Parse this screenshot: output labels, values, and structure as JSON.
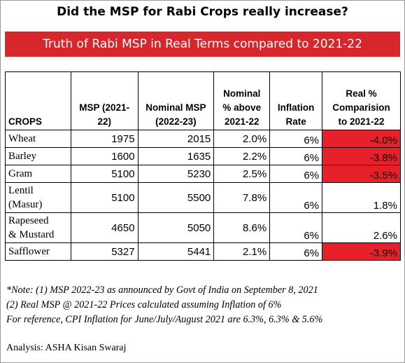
{
  "header": {
    "title": "Did the MSP for Rabi Crops really increase?",
    "banner": "Truth of Rabi MSP in Real Terms compared to 2021-22"
  },
  "table": {
    "columns": [
      "CROPS",
      "MSP (2021-\n22)",
      "Nominal MSP\n(2022-23)",
      "Nominal\n% above\n2021-22",
      "Inflation\nRate",
      "Real %\nComparision\nto 2021-22"
    ],
    "rows": [
      [
        "Wheat",
        "1975",
        "2015",
        "2.0%",
        "6%",
        "-4.0%"
      ],
      [
        "Barley",
        "1600",
        "1635",
        "2.2%",
        "6%",
        "-3.8%"
      ],
      [
        "Gram",
        "5100",
        "5230",
        "2.5%",
        "6%",
        "-3.5%"
      ],
      [
        "Lentil\n(Masur)",
        "5100",
        "5500",
        "7.8%",
        "6%",
        "1.8%"
      ],
      [
        "Rapeseed\n& Mustard",
        "4650",
        "5050",
        "8.6%",
        "6%",
        "2.6%"
      ],
      [
        "Safflower",
        "5327",
        "5441",
        "2.1%",
        "6%",
        "-3.9%"
      ]
    ],
    "negative_fill": "#e8202a"
  },
  "notes": [
    "*Note: (1) MSP 2022-23 as announced by Govt of India on September 8, 2021",
    "(2) Real MSP @ 2021-22 Prices calculated assuming Inflation of 6%",
    "For reference, CPI Inflation for June/July/August 2021 are 6.3%, 6.3% & 5.6%"
  ],
  "footer": "Analysis: ASHA Kisan Swaraj"
}
